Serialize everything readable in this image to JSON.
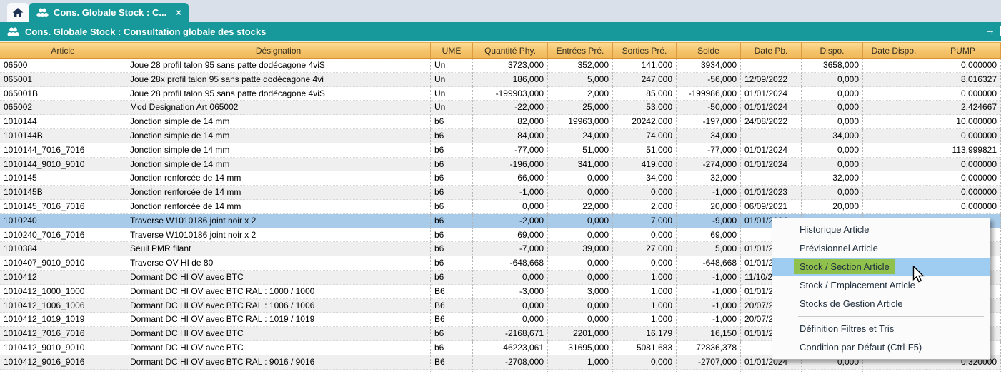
{
  "theme": {
    "teal": "#17989b",
    "tabbar_bg": "#d9e0ea",
    "header_orange": "#f5c36b",
    "header_border": "#dd9a3e",
    "row_alt": "#efefef",
    "selected_row_blue": "#a9cbea",
    "menu_highlight_blue": "#9fcdf2",
    "menu_highlight_green": "#8fc14c"
  },
  "tab_bar": {
    "home_tab": {
      "icon": "home-icon"
    },
    "active_tab": {
      "icon": "stock-icon",
      "label": "Cons. Globale Stock : C...",
      "close": "×"
    }
  },
  "title_bar": {
    "icon": "stock-icon",
    "title": "Cons. Globale Stock : Consultation globale des stocks",
    "arrow": "→"
  },
  "table": {
    "columns": [
      "Article",
      "Désignation",
      "UME",
      "Quantité Phy.",
      "Entrées Pré.",
      "Sorties Pré.",
      "Solde",
      "Date Pb.",
      "Dispo.",
      "Date Dispo.",
      "PUMP"
    ],
    "selected_row_index": 11,
    "rows": [
      {
        "article": "06500",
        "designation": "Joue 28 profil talon 95 sans patte dodécagone 4viS",
        "ume": "Un",
        "qty_phy": "3723,000",
        "entrees_pre": "352,000",
        "sorties_pre": "141,000",
        "solde": "3934,000",
        "date_pb": "",
        "dispo": "3658,000",
        "date_dispo": "",
        "pump": "0,000000"
      },
      {
        "article": "065001",
        "designation": "Joue 28x profil talon 95 sans patte dodécagone 4vi",
        "ume": "Un",
        "qty_phy": "186,000",
        "entrees_pre": "5,000",
        "sorties_pre": "247,000",
        "solde": "-56,000",
        "date_pb": "12/09/2022",
        "dispo": "0,000",
        "date_dispo": "",
        "pump": "8,016327"
      },
      {
        "article": "065001B",
        "designation": "Joue 28 profil talon 95 sans patte dodécagone 4viS",
        "ume": "Un",
        "qty_phy": "-199903,000",
        "entrees_pre": "2,000",
        "sorties_pre": "85,000",
        "solde": "-199986,000",
        "date_pb": "01/01/2024",
        "dispo": "0,000",
        "date_dispo": "",
        "pump": "0,000000"
      },
      {
        "article": "065002",
        "designation": "Mod Designation Art 065002",
        "ume": "Un",
        "qty_phy": "-22,000",
        "entrees_pre": "25,000",
        "sorties_pre": "53,000",
        "solde": "-50,000",
        "date_pb": "01/01/2024",
        "dispo": "0,000",
        "date_dispo": "",
        "pump": "2,424667"
      },
      {
        "article": "1010144",
        "designation": "Jonction simple de 14 mm",
        "ume": "b6",
        "qty_phy": "82,000",
        "entrees_pre": "19963,000",
        "sorties_pre": "20242,000",
        "solde": "-197,000",
        "date_pb": "24/08/2022",
        "dispo": "0,000",
        "date_dispo": "",
        "pump": "10,000000"
      },
      {
        "article": "1010144B",
        "designation": "Jonction simple de 14 mm",
        "ume": "b6",
        "qty_phy": "84,000",
        "entrees_pre": "24,000",
        "sorties_pre": "74,000",
        "solde": "34,000",
        "date_pb": "",
        "dispo": "34,000",
        "date_dispo": "",
        "pump": "0,000000"
      },
      {
        "article": "1010144_7016_7016",
        "designation": "Jonction simple de 14 mm",
        "ume": "b6",
        "qty_phy": "-77,000",
        "entrees_pre": "51,000",
        "sorties_pre": "51,000",
        "solde": "-77,000",
        "date_pb": "01/01/2024",
        "dispo": "0,000",
        "date_dispo": "",
        "pump": "113,999821"
      },
      {
        "article": "1010144_9010_9010",
        "designation": "Jonction simple de 14 mm",
        "ume": "b6",
        "qty_phy": "-196,000",
        "entrees_pre": "341,000",
        "sorties_pre": "419,000",
        "solde": "-274,000",
        "date_pb": "01/01/2024",
        "dispo": "0,000",
        "date_dispo": "",
        "pump": "0,000000"
      },
      {
        "article": "1010145",
        "designation": "Jonction renforcée de 14 mm",
        "ume": "b6",
        "qty_phy": "66,000",
        "entrees_pre": "0,000",
        "sorties_pre": "34,000",
        "solde": "32,000",
        "date_pb": "",
        "dispo": "32,000",
        "date_dispo": "",
        "pump": "0,000000"
      },
      {
        "article": "1010145B",
        "designation": "Jonction renforcée de 14 mm",
        "ume": "b6",
        "qty_phy": "-1,000",
        "entrees_pre": "0,000",
        "sorties_pre": "0,000",
        "solde": "-1,000",
        "date_pb": "01/01/2023",
        "dispo": "0,000",
        "date_dispo": "",
        "pump": "0,000000"
      },
      {
        "article": "1010145_7016_7016",
        "designation": "Jonction renforcée de 14 mm",
        "ume": "b6",
        "qty_phy": "0,000",
        "entrees_pre": "22,000",
        "sorties_pre": "2,000",
        "solde": "20,000",
        "date_pb": "06/09/2021",
        "dispo": "20,000",
        "date_dispo": "",
        "pump": "0,000000"
      },
      {
        "article": "1010240",
        "designation": "Traverse W1010186 joint noir x 2",
        "ume": "b6",
        "qty_phy": "-2,000",
        "entrees_pre": "0,000",
        "sorties_pre": "7,000",
        "solde": "-9,000",
        "date_pb": "01/01/2024",
        "dispo": "",
        "date_dispo": "",
        "pump": ""
      },
      {
        "article": "1010240_7016_7016",
        "designation": "Traverse W1010186 joint noir x 2",
        "ume": "b6",
        "qty_phy": "69,000",
        "entrees_pre": "0,000",
        "sorties_pre": "0,000",
        "solde": "69,000",
        "date_pb": "",
        "dispo": "",
        "date_dispo": "",
        "pump": ""
      },
      {
        "article": "1010384",
        "designation": "Seuil PMR filant",
        "ume": "b6",
        "qty_phy": "-7,000",
        "entrees_pre": "39,000",
        "sorties_pre": "27,000",
        "solde": "5,000",
        "date_pb": "01/01/2024",
        "dispo": "",
        "date_dispo": "",
        "pump": ""
      },
      {
        "article": "1010407_9010_9010",
        "designation": "Traverse OV HI de 80",
        "ume": "b6",
        "qty_phy": "-648,668",
        "entrees_pre": "0,000",
        "sorties_pre": "0,000",
        "solde": "-648,668",
        "date_pb": "01/01/2024",
        "dispo": "",
        "date_dispo": "",
        "pump": ""
      },
      {
        "article": "1010412",
        "designation": "Dormant DC HI OV avec BTC",
        "ume": "b6",
        "qty_phy": "0,000",
        "entrees_pre": "0,000",
        "sorties_pre": "1,000",
        "solde": "-1,000",
        "date_pb": "11/10/2024",
        "dispo": "",
        "date_dispo": "",
        "pump": ""
      },
      {
        "article": "1010412_1000_1000",
        "designation": "Dormant DC HI OV avec BTC RAL : 1000 / 1000",
        "ume": "B6",
        "qty_phy": "-3,000",
        "entrees_pre": "3,000",
        "sorties_pre": "1,000",
        "solde": "-1,000",
        "date_pb": "01/01/2024",
        "dispo": "",
        "date_dispo": "",
        "pump": ""
      },
      {
        "article": "1010412_1006_1006",
        "designation": "Dormant DC HI OV avec BTC RAL : 1006 / 1006",
        "ume": "B6",
        "qty_phy": "0,000",
        "entrees_pre": "0,000",
        "sorties_pre": "1,000",
        "solde": "-1,000",
        "date_pb": "20/07/2024",
        "dispo": "",
        "date_dispo": "",
        "pump": ""
      },
      {
        "article": "1010412_1019_1019",
        "designation": "Dormant DC HI OV avec BTC RAL : 1019 / 1019",
        "ume": "B6",
        "qty_phy": "0,000",
        "entrees_pre": "0,000",
        "sorties_pre": "1,000",
        "solde": "-1,000",
        "date_pb": "20/07/2024",
        "dispo": "",
        "date_dispo": "",
        "pump": ""
      },
      {
        "article": "1010412_7016_7016",
        "designation": "Dormant DC HI OV avec BTC",
        "ume": "b6",
        "qty_phy": "-2168,671",
        "entrees_pre": "2201,000",
        "sorties_pre": "16,179",
        "solde": "16,150",
        "date_pb": "01/01/2024",
        "dispo": "",
        "date_dispo": "",
        "pump": ""
      },
      {
        "article": "1010412_9010_9010",
        "designation": "Dormant DC HI OV avec BTC",
        "ume": "b6",
        "qty_phy": "46223,061",
        "entrees_pre": "31695,000",
        "sorties_pre": "5081,683",
        "solde": "72836,378",
        "date_pb": "",
        "dispo": "",
        "date_dispo": "",
        "pump": ""
      },
      {
        "article": "1010412_9016_9016",
        "designation": "Dormant DC HI OV avec BTC RAL : 9016 / 9016",
        "ume": "B6",
        "qty_phy": "-2708,000",
        "entrees_pre": "1,000",
        "sorties_pre": "0,000",
        "solde": "-2707,000",
        "date_pb": "01/01/2024",
        "dispo": "0,000",
        "date_dispo": "",
        "pump": "0,320000"
      }
    ]
  },
  "context_menu": {
    "items": [
      {
        "label": "Historique Article"
      },
      {
        "label": "Prévisionnel Article"
      },
      {
        "label": "Stock / Section Article",
        "highlighted": true
      },
      {
        "label": "Stock / Emplacement Article"
      },
      {
        "label": "Stocks de Gestion Article"
      },
      {
        "separator": true
      },
      {
        "label": "Définition Filtres et Tris"
      },
      {
        "label": "Condition par Défaut (Ctrl-F5)"
      }
    ]
  }
}
